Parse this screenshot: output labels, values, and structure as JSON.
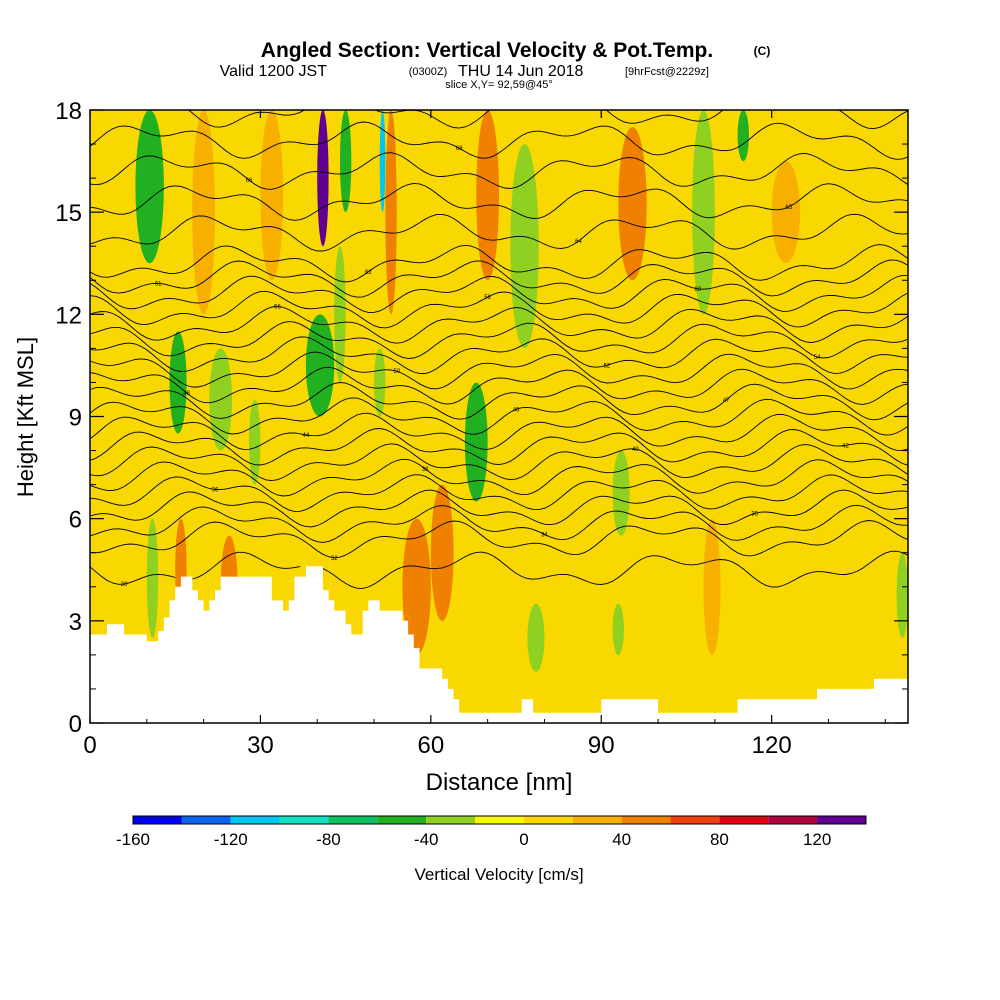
{
  "header": {
    "title": "Angled Section: Vertical Velocity & Pot.Temp.",
    "title_unit": "(C)",
    "valid_prefix": "Valid 1200 JST",
    "valid_utc": "(0300Z)",
    "valid_date": "THU 14 Jun 2018",
    "forecast": "[9hrFcst@2229z]",
    "slice": "slice X,Y= 92,59@45°"
  },
  "chart_data": {
    "type": "heatmap",
    "title": "Angled Section: Vertical Velocity & Pot.Temp.",
    "xlabel": "Distance [nm]",
    "ylabel": "Height [Kft MSL]",
    "xlim": [
      0,
      144
    ],
    "ylim": [
      0,
      18
    ],
    "x_ticks": [
      {
        "value": 0,
        "label": "0"
      },
      {
        "value": 30,
        "label": "30"
      },
      {
        "value": 60,
        "label": "60"
      },
      {
        "value": 90,
        "label": "90"
      },
      {
        "value": 120,
        "label": "120"
      }
    ],
    "y_ticks": [
      {
        "value": 0,
        "label": "0"
      },
      {
        "value": 3,
        "label": "3"
      },
      {
        "value": 6,
        "label": "6"
      },
      {
        "value": 9,
        "label": "9"
      },
      {
        "value": 12,
        "label": "12"
      },
      {
        "value": 15,
        "label": "15"
      },
      {
        "value": 18,
        "label": "18"
      }
    ],
    "colorbar": {
      "label": "Vertical Velocity [cm/s]",
      "bins": [
        {
          "from": -160,
          "to": -140,
          "color": "#0000f0"
        },
        {
          "from": -140,
          "to": -120,
          "color": "#0a64f0"
        },
        {
          "from": -120,
          "to": -100,
          "color": "#00c8f0"
        },
        {
          "from": -100,
          "to": -80,
          "color": "#10e0c0"
        },
        {
          "from": -80,
          "to": -60,
          "color": "#10c060"
        },
        {
          "from": -60,
          "to": -40,
          "color": "#20b020"
        },
        {
          "from": -40,
          "to": -20,
          "color": "#90d020"
        },
        {
          "from": -20,
          "to": 0,
          "color": "#f8f800"
        },
        {
          "from": 0,
          "to": 20,
          "color": "#f8d800"
        },
        {
          "from": 20,
          "to": 40,
          "color": "#f8b000"
        },
        {
          "from": 40,
          "to": 60,
          "color": "#f08000"
        },
        {
          "from": 60,
          "to": 80,
          "color": "#f04010"
        },
        {
          "from": 80,
          "to": 100,
          "color": "#e00010"
        },
        {
          "from": 100,
          "to": 120,
          "color": "#b00040"
        },
        {
          "from": 120,
          "to": 140,
          "color": "#600090"
        }
      ],
      "tick_labels": [
        {
          "value": -160,
          "label": "-160"
        },
        {
          "value": -120,
          "label": "-120"
        },
        {
          "value": -80,
          "label": "-80"
        },
        {
          "value": -40,
          "label": "-40"
        },
        {
          "value": 0,
          "label": "0"
        },
        {
          "value": 40,
          "label": "40"
        },
        {
          "value": 80,
          "label": "80"
        },
        {
          "value": 120,
          "label": "120"
        }
      ]
    },
    "terrain": [
      [
        0,
        2.6
      ],
      [
        3,
        2.6
      ],
      [
        3,
        2.9
      ],
      [
        6,
        2.9
      ],
      [
        6,
        2.6
      ],
      [
        10,
        2.6
      ],
      [
        10,
        2.4
      ],
      [
        12,
        2.4
      ],
      [
        12,
        2.7
      ],
      [
        13,
        2.7
      ],
      [
        13,
        3.1
      ],
      [
        14,
        3.1
      ],
      [
        14,
        3.6
      ],
      [
        15,
        3.6
      ],
      [
        15,
        4.0
      ],
      [
        16,
        4.0
      ],
      [
        16,
        4.3
      ],
      [
        18,
        4.3
      ],
      [
        18,
        3.9
      ],
      [
        19,
        3.9
      ],
      [
        19,
        3.6
      ],
      [
        20,
        3.6
      ],
      [
        20,
        3.3
      ],
      [
        21,
        3.3
      ],
      [
        21,
        3.6
      ],
      [
        22,
        3.6
      ],
      [
        22,
        3.9
      ],
      [
        23,
        3.9
      ],
      [
        23,
        4.3
      ],
      [
        32,
        4.3
      ],
      [
        32,
        3.6
      ],
      [
        34,
        3.6
      ],
      [
        34,
        3.3
      ],
      [
        35,
        3.3
      ],
      [
        35,
        3.6
      ],
      [
        36,
        3.6
      ],
      [
        36,
        4.3
      ],
      [
        38,
        4.3
      ],
      [
        38,
        4.6
      ],
      [
        41,
        4.6
      ],
      [
        41,
        3.9
      ],
      [
        42,
        3.9
      ],
      [
        42,
        3.6
      ],
      [
        43,
        3.6
      ],
      [
        43,
        3.3
      ],
      [
        45,
        3.3
      ],
      [
        45,
        2.9
      ],
      [
        46,
        2.9
      ],
      [
        46,
        2.6
      ],
      [
        48,
        2.6
      ],
      [
        48,
        3.3
      ],
      [
        49,
        3.3
      ],
      [
        49,
        3.6
      ],
      [
        51,
        3.6
      ],
      [
        51,
        3.3
      ],
      [
        55,
        3.3
      ],
      [
        55,
        3.0
      ],
      [
        56,
        3.0
      ],
      [
        56,
        2.6
      ],
      [
        57,
        2.6
      ],
      [
        57,
        2.2
      ],
      [
        58,
        2.2
      ],
      [
        58,
        1.6
      ],
      [
        62,
        1.6
      ],
      [
        62,
        1.3
      ],
      [
        63,
        1.3
      ],
      [
        63,
        1.0
      ],
      [
        64,
        1.0
      ],
      [
        64,
        0.7
      ],
      [
        65,
        0.7
      ],
      [
        65,
        0.3
      ],
      [
        76,
        0.3
      ],
      [
        76,
        0.7
      ],
      [
        78,
        0.7
      ],
      [
        78,
        0.3
      ],
      [
        90,
        0.3
      ],
      [
        90,
        0.7
      ],
      [
        100,
        0.7
      ],
      [
        100,
        0.3
      ],
      [
        114,
        0.3
      ],
      [
        114,
        0.7
      ],
      [
        128,
        0.7
      ],
      [
        128,
        1.0
      ],
      [
        138,
        1.0
      ],
      [
        138,
        1.3
      ],
      [
        144,
        1.3
      ]
    ],
    "cells": [
      {
        "x": [
          8,
          13
        ],
        "y": [
          13.5,
          18
        ],
        "value": -50
      },
      {
        "x": [
          10,
          12
        ],
        "y": [
          2.5,
          6
        ],
        "value": -40
      },
      {
        "x": [
          14,
          17
        ],
        "y": [
          8.5,
          11.5
        ],
        "value": -45
      },
      {
        "x": [
          15,
          17
        ],
        "y": [
          3,
          6
        ],
        "value": 55
      },
      {
        "x": [
          18,
          22
        ],
        "y": [
          12,
          18
        ],
        "value": 30
      },
      {
        "x": [
          21,
          25
        ],
        "y": [
          8,
          11
        ],
        "value": -40
      },
      {
        "x": [
          23,
          26
        ],
        "y": [
          2.5,
          5.5
        ],
        "value": 50
      },
      {
        "x": [
          28,
          30
        ],
        "y": [
          7,
          9.5
        ],
        "value": -40
      },
      {
        "x": [
          30,
          34
        ],
        "y": [
          13,
          18
        ],
        "value": 25
      },
      {
        "x": [
          38,
          43
        ],
        "y": [
          9,
          12
        ],
        "value": -50
      },
      {
        "x": [
          40,
          42
        ],
        "y": [
          14,
          18
        ],
        "value": 130
      },
      {
        "x": [
          43,
          45
        ],
        "y": [
          10,
          14
        ],
        "value": -30
      },
      {
        "x": [
          44,
          46
        ],
        "y": [
          15,
          18
        ],
        "value": -60
      },
      {
        "x": [
          51,
          52
        ],
        "y": [
          15,
          18
        ],
        "value": -110
      },
      {
        "x": [
          50,
          52
        ],
        "y": [
          9,
          11
        ],
        "value": -40
      },
      {
        "x": [
          52,
          54
        ],
        "y": [
          12,
          18
        ],
        "value": 40
      },
      {
        "x": [
          55,
          60
        ],
        "y": [
          2,
          6
        ],
        "value": 50
      },
      {
        "x": [
          60,
          64
        ],
        "y": [
          3,
          7
        ],
        "value": 50
      },
      {
        "x": [
          66,
          70
        ],
        "y": [
          6.5,
          10
        ],
        "value": -50
      },
      {
        "x": [
          68,
          72
        ],
        "y": [
          13,
          18
        ],
        "value": 40
      },
      {
        "x": [
          74,
          79
        ],
        "y": [
          11,
          17
        ],
        "value": -30
      },
      {
        "x": [
          77,
          80
        ],
        "y": [
          1.5,
          3.5
        ],
        "value": -30
      },
      {
        "x": [
          92,
          94
        ],
        "y": [
          2,
          3.5
        ],
        "value": -25
      },
      {
        "x": [
          92,
          95
        ],
        "y": [
          5.5,
          8
        ],
        "value": -35
      },
      {
        "x": [
          93,
          98
        ],
        "y": [
          13,
          17.5
        ],
        "value": 50
      },
      {
        "x": [
          106,
          110
        ],
        "y": [
          12,
          18
        ],
        "value": -30
      },
      {
        "x": [
          108,
          111
        ],
        "y": [
          2,
          6
        ],
        "value": 30
      },
      {
        "x": [
          114,
          116
        ],
        "y": [
          16.5,
          18
        ],
        "value": -45
      },
      {
        "x": [
          120,
          125
        ],
        "y": [
          13.5,
          16.5
        ],
        "value": 30
      },
      {
        "x": [
          142,
          144
        ],
        "y": [
          2.5,
          5
        ],
        "value": -40
      }
    ],
    "contours": {
      "label_values": [
        "30",
        "32",
        "34",
        "35",
        "36",
        "38",
        "40",
        "42",
        "44",
        "46",
        "47",
        "48",
        "50",
        "52",
        "54",
        "56",
        "58",
        "60",
        "61",
        "62",
        "64",
        "65",
        "66",
        "68",
        "70",
        "72",
        "74",
        "76"
      ],
      "theta_values": [
        28,
        30,
        31,
        32,
        33,
        34,
        35,
        36,
        37,
        38,
        39,
        40,
        41,
        42,
        43,
        44,
        45,
        46,
        47,
        48,
        50,
        52,
        54,
        56,
        58,
        60,
        62,
        64,
        66,
        68
      ]
    }
  }
}
